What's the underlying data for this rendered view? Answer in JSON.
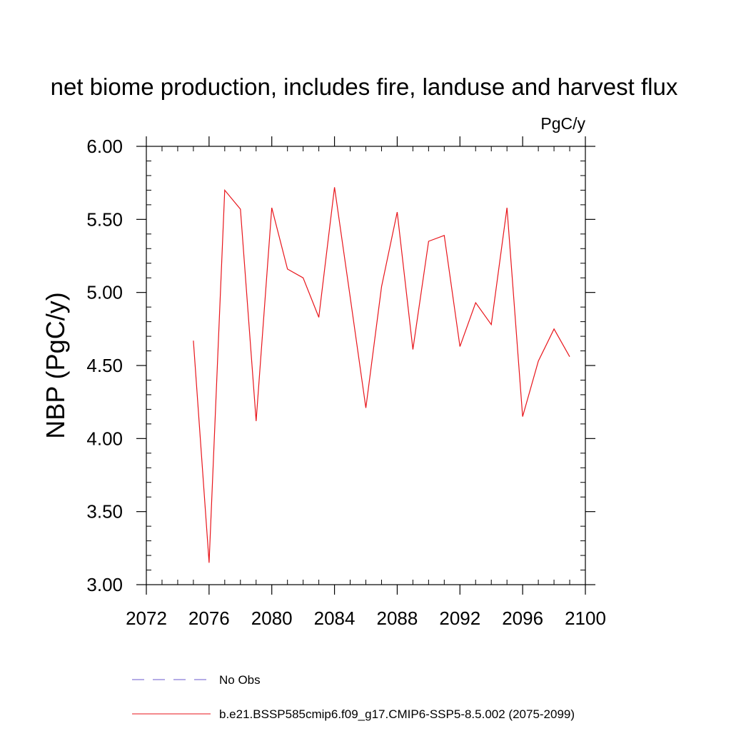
{
  "chart_data": {
    "type": "line",
    "title": "net biome production, includes fire, landuse and harvest flux",
    "units": "PgC/y",
    "ylabel": "NBP  (PgC/y)",
    "xlabel": "",
    "xlim": [
      2072,
      2100
    ],
    "ylim": [
      3.0,
      6.0
    ],
    "x_ticks": [
      2072,
      2076,
      2080,
      2084,
      2088,
      2092,
      2096,
      2100
    ],
    "x_tick_labels": [
      "2072",
      "2076",
      "2080",
      "2084",
      "2088",
      "2092",
      "2096",
      "2100"
    ],
    "y_ticks": [
      3.0,
      3.5,
      4.0,
      4.5,
      5.0,
      5.5,
      6.0
    ],
    "y_tick_labels": [
      "3.00",
      "3.50",
      "4.00",
      "4.50",
      "5.00",
      "5.50",
      "6.00"
    ],
    "x_minor_step": 1,
    "y_minor_step": 0.1,
    "grid": false,
    "legend_position": "bottom",
    "series": [
      {
        "name": "b.e21.BSSP585cmip6.f09_g17.CMIP6-SSP5-8.5.002 (2075-2099)",
        "color": "#e8151b",
        "style": "solid",
        "x": [
          2075,
          2076,
          2077,
          2078,
          2079,
          2080,
          2081,
          2082,
          2083,
          2084,
          2085,
          2086,
          2087,
          2088,
          2089,
          2090,
          2091,
          2092,
          2093,
          2094,
          2095,
          2096,
          2097,
          2098,
          2099
        ],
        "values": [
          4.67,
          3.15,
          5.7,
          5.57,
          4.12,
          5.58,
          5.16,
          5.1,
          4.83,
          5.72,
          4.97,
          4.21,
          5.04,
          5.55,
          4.61,
          5.35,
          5.39,
          4.63,
          4.93,
          4.78,
          5.58,
          4.15,
          4.53,
          4.75,
          4.56
        ]
      }
    ],
    "legend": [
      {
        "label": "No Obs",
        "color": "#6a5acd",
        "style": "dashed"
      },
      {
        "label": "b.e21.BSSP585cmip6.f09_g17.CMIP6-SSP5-8.5.002 (2075-2099)",
        "color": "#e8151b",
        "style": "solid"
      }
    ]
  }
}
